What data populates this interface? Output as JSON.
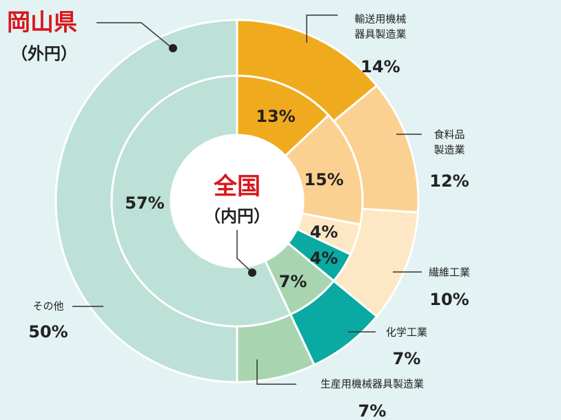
{
  "legend": {
    "outer_title": "岡山県",
    "outer_sub": "（外円）",
    "inner_title": "全国",
    "inner_sub": "（内円）"
  },
  "colors": {
    "accent_red": "#d9171c",
    "leader": "#333333",
    "background": "#e3f2f3"
  },
  "chart_data": {
    "type": "pie",
    "variant": "nested-donut",
    "categories": [
      "輸送用機械器具製造業",
      "食料品製造業",
      "繊維工業",
      "化学工業",
      "生産用機械器具製造業",
      "その他"
    ],
    "colors": [
      "#f0aa1e",
      "#fbd191",
      "#fde7c4",
      "#0aa9a2",
      "#a8d5b0",
      "#bde0d7"
    ],
    "series": [
      {
        "name": "岡山県（外円）",
        "values": [
          14,
          12,
          10,
          7,
          7,
          50
        ]
      },
      {
        "name": "全国（内円）",
        "values": [
          13,
          15,
          4,
          4,
          7,
          57
        ]
      }
    ],
    "outer_labels": [
      {
        "name_lines": [
          "輸送用機械",
          "器具製造業"
        ],
        "pct": "14%"
      },
      {
        "name_lines": [
          "食料品",
          "製造業"
        ],
        "pct": "12%"
      },
      {
        "name_lines": [
          "繊維工業"
        ],
        "pct": "10%"
      },
      {
        "name_lines": [
          "化学工業"
        ],
        "pct": "7%"
      },
      {
        "name_lines": [
          "生産用機械器具製造業"
        ],
        "pct": "7%"
      },
      {
        "name_lines": [
          "その他"
        ],
        "pct": "50%"
      }
    ],
    "inner_labels": [
      "13%",
      "15%",
      "4%",
      "4%",
      "7%",
      "57%"
    ]
  }
}
